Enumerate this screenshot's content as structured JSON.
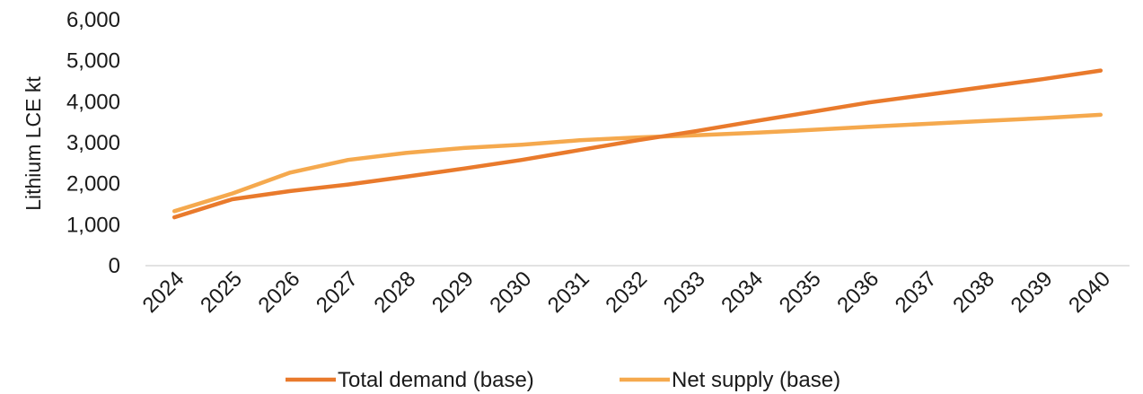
{
  "chart_data": {
    "type": "line",
    "title": "",
    "xlabel": "",
    "ylabel": "Lithium LCE kt",
    "x": [
      "2024",
      "2025",
      "2026",
      "2027",
      "2028",
      "2029",
      "2030",
      "2031",
      "2032",
      "2033",
      "2034",
      "2035",
      "2036",
      "2037",
      "2038",
      "2039",
      "2040"
    ],
    "ylim": [
      0,
      6000
    ],
    "yticks": [
      0,
      1000,
      2000,
      3000,
      4000,
      5000,
      6000
    ],
    "ytick_labels": [
      "0",
      "1,000",
      "2,000",
      "3,000",
      "4,000",
      "5,000",
      "6,000"
    ],
    "grid": false,
    "legend_position": "bottom",
    "series": [
      {
        "name": "Total demand (base)",
        "color": "#E97A2C",
        "values": [
          1180,
          1620,
          1820,
          1980,
          2170,
          2370,
          2580,
          2820,
          3060,
          3280,
          3520,
          3750,
          3980,
          4170,
          4360,
          4550,
          4760
        ]
      },
      {
        "name": "Net supply (base)",
        "color": "#F5A94E",
        "values": [
          1330,
          1760,
          2270,
          2580,
          2750,
          2870,
          2950,
          3060,
          3130,
          3180,
          3240,
          3310,
          3390,
          3460,
          3530,
          3600,
          3680
        ]
      }
    ]
  }
}
